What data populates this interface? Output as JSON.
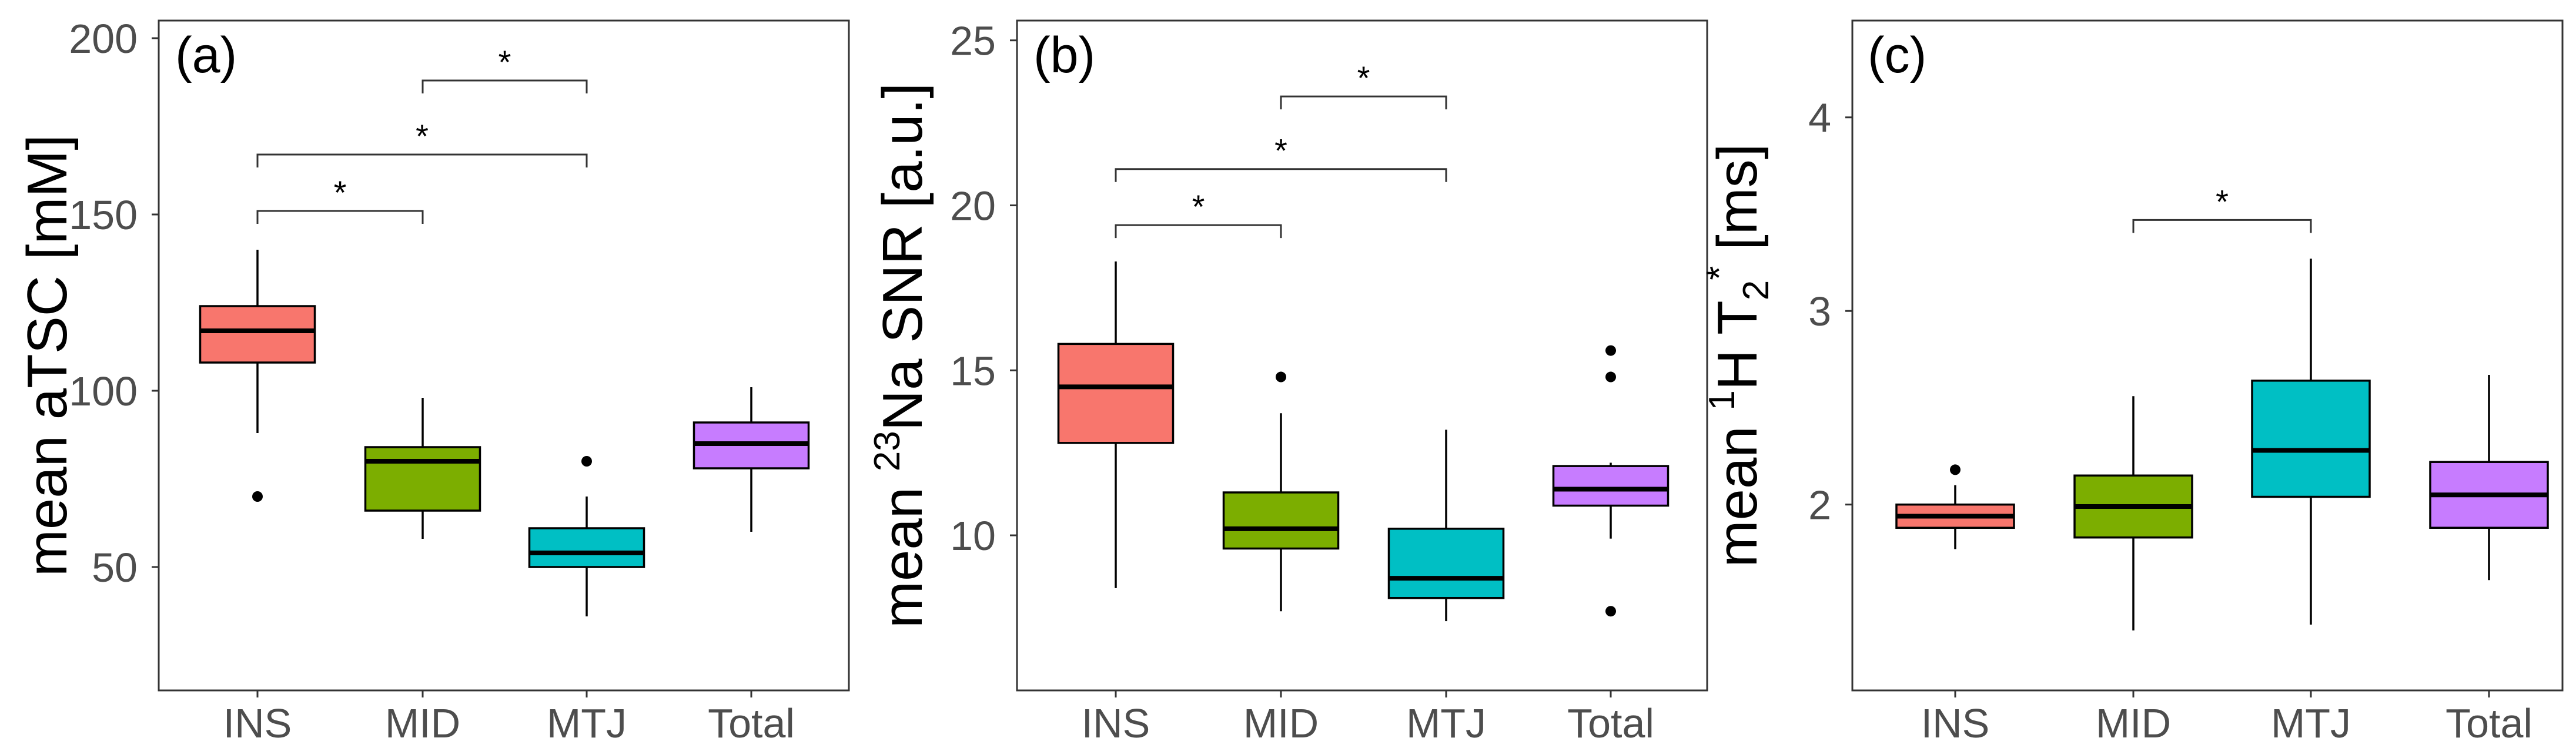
{
  "chart_data": [
    {
      "type": "box",
      "panel_label": "(a)",
      "ylabel": "mean aTSC [mM]",
      "ylim": [
        15,
        205
      ],
      "yticks": [
        50,
        100,
        150,
        200
      ],
      "ytick_labels": [
        "50",
        "100",
        "150",
        "200"
      ],
      "categories": [
        "INS",
        "MID",
        "MTJ",
        "Total"
      ],
      "colors": [
        "#F8766D",
        "#7CAE00",
        "#00BFC4",
        "#C77CFF"
      ],
      "boxes": [
        {
          "category": "INS",
          "whisker_low": 88,
          "q1": 108,
          "median": 117,
          "q3": 124,
          "whisker_high": 140,
          "outliers": [
            70
          ]
        },
        {
          "category": "MID",
          "whisker_low": 58,
          "q1": 66,
          "median": 80,
          "q3": 84,
          "whisker_high": 98,
          "outliers": []
        },
        {
          "category": "MTJ",
          "whisker_low": 36,
          "q1": 50,
          "median": 54,
          "q3": 61,
          "whisker_high": 70,
          "outliers": [
            80
          ]
        },
        {
          "category": "Total",
          "whisker_low": 60,
          "q1": 78,
          "median": 85,
          "q3": 91,
          "whisker_high": 101,
          "outliers": []
        }
      ],
      "significance": [
        {
          "from": "MID",
          "to": "MTJ",
          "y": 188,
          "label": "*"
        },
        {
          "from": "INS",
          "to": "MTJ",
          "y": 167,
          "label": "*"
        },
        {
          "from": "INS",
          "to": "MID",
          "y": 151,
          "label": "*"
        }
      ]
    },
    {
      "type": "box",
      "panel_label": "(b)",
      "ylabel_parts": {
        "pre": "mean ",
        "sup": "23",
        "post": "Na SNR [a.u.]"
      },
      "ylim": [
        5.3,
        25.6
      ],
      "yticks": [
        10,
        15,
        20,
        25
      ],
      "ytick_labels": [
        "10",
        "15",
        "20",
        "25"
      ],
      "categories": [
        "INS",
        "MID",
        "MTJ",
        "Total"
      ],
      "colors": [
        "#F8766D",
        "#7CAE00",
        "#00BFC4",
        "#C77CFF"
      ],
      "boxes": [
        {
          "category": "INS",
          "whisker_low": 8.4,
          "q1": 12.8,
          "median": 14.5,
          "q3": 15.8,
          "whisker_high": 18.3,
          "outliers": []
        },
        {
          "category": "MID",
          "whisker_low": 7.7,
          "q1": 9.6,
          "median": 10.2,
          "q3": 11.3,
          "whisker_high": 13.7,
          "outliers": [
            14.8
          ]
        },
        {
          "category": "MTJ",
          "whisker_low": 7.4,
          "q1": 8.1,
          "median": 8.7,
          "q3": 10.2,
          "whisker_high": 13.2,
          "outliers": []
        },
        {
          "category": "Total",
          "whisker_low": 9.9,
          "q1": 10.9,
          "median": 11.4,
          "q3": 12.1,
          "whisker_high": 12.2,
          "outliers": [
            7.7,
            14.8,
            15.6
          ]
        }
      ],
      "significance": [
        {
          "from": "MID",
          "to": "MTJ",
          "y": 23.3,
          "label": "*"
        },
        {
          "from": "INS",
          "to": "MTJ",
          "y": 21.1,
          "label": "*"
        },
        {
          "from": "INS",
          "to": "MID",
          "y": 19.4,
          "label": "*"
        }
      ]
    },
    {
      "type": "box",
      "panel_label": "(c)",
      "ylabel_parts": {
        "pre": "mean ",
        "sup1": "1",
        "mid": "H T",
        "sub": "2",
        "sup2": "*",
        "post": " [ms]"
      },
      "ylim": [
        1.04,
        4.5
      ],
      "yticks": [
        2,
        3,
        4
      ],
      "ytick_labels": [
        "2",
        "3",
        "4"
      ],
      "categories": [
        "INS",
        "MID",
        "MTJ",
        "Total"
      ],
      "colors": [
        "#F8766D",
        "#7CAE00",
        "#00BFC4",
        "#C77CFF"
      ],
      "boxes": [
        {
          "category": "INS",
          "whisker_low": 1.77,
          "q1": 1.88,
          "median": 1.94,
          "q3": 2.0,
          "whisker_high": 2.1,
          "outliers": [
            2.18
          ]
        },
        {
          "category": "MID",
          "whisker_low": 1.35,
          "q1": 1.83,
          "median": 1.99,
          "q3": 2.15,
          "whisker_high": 2.56,
          "outliers": []
        },
        {
          "category": "MTJ",
          "whisker_low": 1.38,
          "q1": 2.04,
          "median": 2.28,
          "q3": 2.64,
          "whisker_high": 3.27,
          "outliers": []
        },
        {
          "category": "Total",
          "whisker_low": 1.61,
          "q1": 1.88,
          "median": 2.05,
          "q3": 2.22,
          "whisker_high": 2.67,
          "outliers": []
        }
      ],
      "significance": [
        {
          "from": "MID",
          "to": "MTJ",
          "y": 3.47,
          "label": "*"
        }
      ]
    }
  ]
}
